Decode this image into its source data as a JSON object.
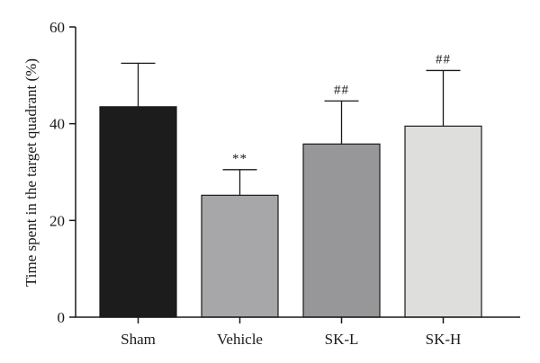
{
  "chart_data": {
    "type": "bar",
    "title": "",
    "xlabel": "",
    "ylabel": "Time spent in the target quadrant (%)",
    "ylim": [
      0,
      60
    ],
    "yticks": [
      0,
      20,
      40,
      60
    ],
    "grid": false,
    "categories": [
      "Sham",
      "Vehicle",
      "SK-L",
      "SK-H"
    ],
    "values": [
      43.5,
      25.2,
      35.8,
      39.5
    ],
    "error_upper": [
      52.5,
      30.5,
      44.7,
      51.0
    ],
    "annotations": [
      "",
      "**",
      "##",
      "##"
    ],
    "colors": [
      "#1c1c1c",
      "#a7a7a9",
      "#979799",
      "#dededd"
    ]
  }
}
